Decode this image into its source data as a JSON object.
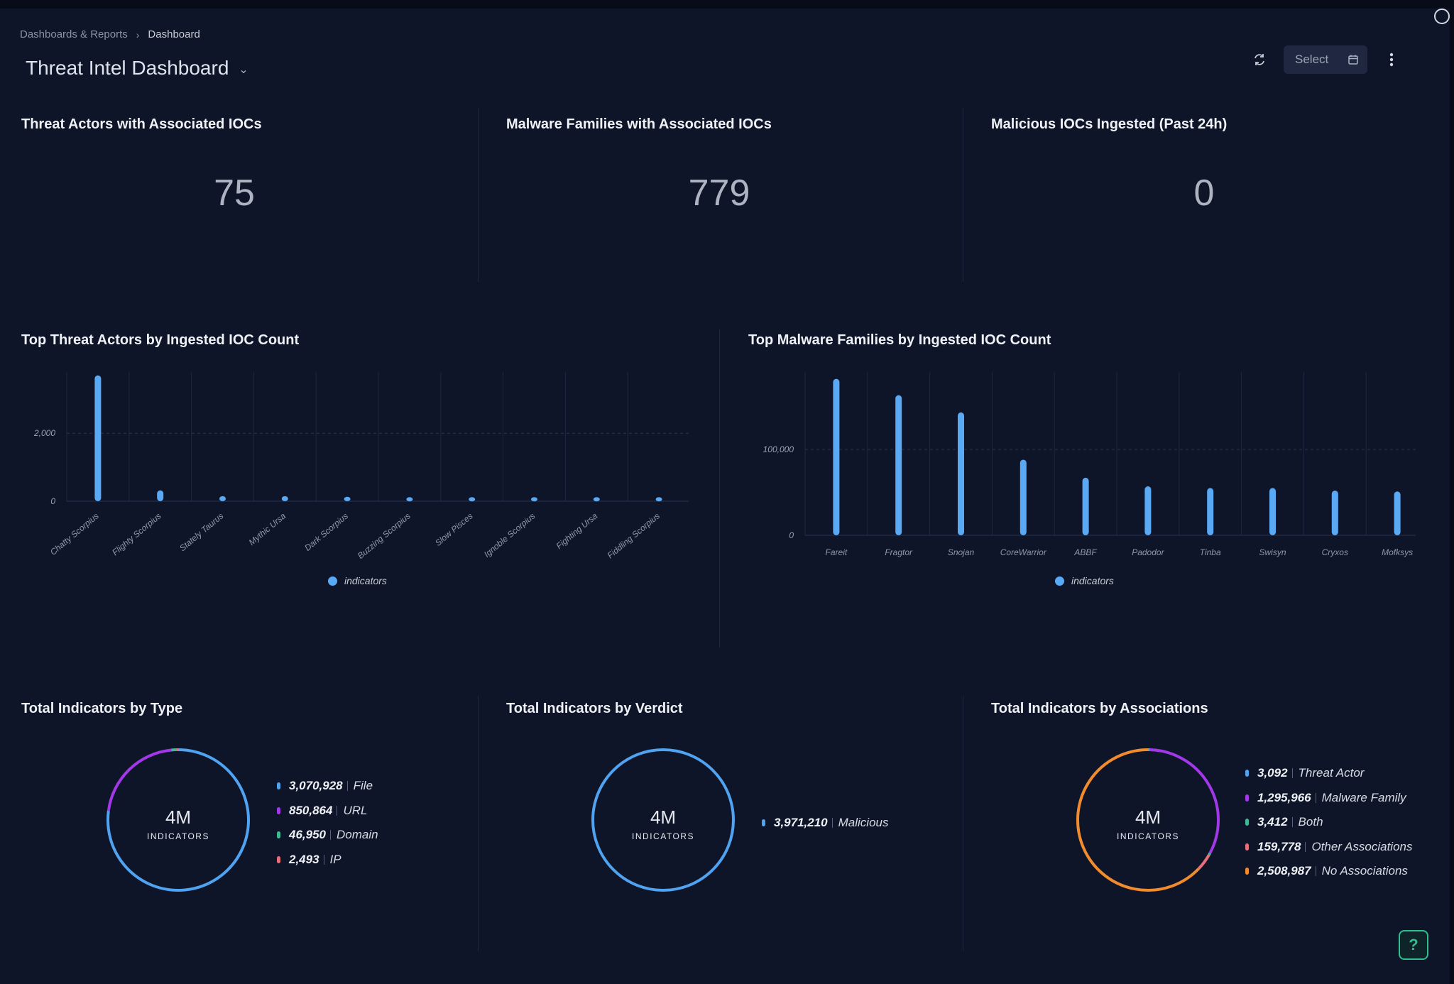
{
  "breadcrumb": {
    "parent": "Dashboards & Reports",
    "current": "Dashboard"
  },
  "page": {
    "title": "Threat Intel Dashboard"
  },
  "toolbar": {
    "select_label": "Select",
    "refresh_icon": "refresh-icon",
    "calendar_icon": "calendar-icon",
    "more_icon": "more-vertical-icon"
  },
  "kpis": [
    {
      "title": "Threat Actors with Associated IOCs",
      "value": "75"
    },
    {
      "title": "Malware Families with Associated IOCs",
      "value": "779"
    },
    {
      "title": "Malicious IOCs Ingested (Past 24h)",
      "value": "0"
    }
  ],
  "charts": {
    "actors": {
      "title": "Top Threat Actors by Ingested IOC Count",
      "legend": "indicators"
    },
    "malware": {
      "title": "Top Malware Families by Ingested IOC Count",
      "legend": "indicators"
    }
  },
  "chart_data": [
    {
      "type": "bar",
      "title": "Top Threat Actors by Ingested IOC Count",
      "categories": [
        "Chatty Scorpius",
        "Flighty Scorpius",
        "Stately Taurus",
        "Mythic Ursa",
        "Dark Scorpius",
        "Buzzing Scorpius",
        "Slow Pisces",
        "Ignoble Scorpius",
        "Fighting Ursa",
        "Fiddling Scorpius"
      ],
      "series": [
        {
          "name": "indicators",
          "values": [
            3700,
            320,
            150,
            150,
            130,
            120,
            120,
            120,
            120,
            120
          ]
        }
      ],
      "yticks": [
        0,
        2000
      ],
      "ytick_labels": [
        "0",
        "2,000"
      ],
      "ylim": [
        0,
        3800
      ],
      "legend": "bottom-center",
      "color": "#5aa9f5"
    },
    {
      "type": "bar",
      "title": "Top Malware Families by Ingested IOC Count",
      "categories": [
        "Fareit",
        "Fragtor",
        "Snojan",
        "CoreWarrior",
        "ABBF",
        "Padodor",
        "Tinba",
        "Swisyn",
        "Cryxos",
        "Mofksys"
      ],
      "series": [
        {
          "name": "indicators",
          "values": [
            182000,
            163000,
            143000,
            88000,
            67000,
            57000,
            55000,
            55000,
            52000,
            51000
          ]
        }
      ],
      "yticks": [
        0,
        100000
      ],
      "ytick_labels": [
        "0",
        "100,000"
      ],
      "ylim": [
        0,
        190000
      ],
      "legend": "bottom-center",
      "color": "#5aa9f5"
    },
    {
      "type": "pie",
      "title": "Total Indicators by Type",
      "center_value": "4M",
      "center_label": "INDICATORS",
      "slices": [
        {
          "label": "File",
          "value": 3070928,
          "display": "3,070,928",
          "color": "#4fa3f0"
        },
        {
          "label": "URL",
          "value": 850864,
          "display": "850,864",
          "color": "#a238e8"
        },
        {
          "label": "Domain",
          "value": 46950,
          "display": "46,950",
          "color": "#3fb894"
        },
        {
          "label": "IP",
          "value": 2493,
          "display": "2,493",
          "color": "#e86f7a"
        }
      ]
    },
    {
      "type": "pie",
      "title": "Total Indicators by Verdict",
      "center_value": "4M",
      "center_label": "INDICATORS",
      "slices": [
        {
          "label": "Malicious",
          "value": 3971210,
          "display": "3,971,210",
          "color": "#4fa3f0"
        }
      ]
    },
    {
      "type": "pie",
      "title": "Total Indicators by Associations",
      "center_value": "4M",
      "center_label": "INDICATORS",
      "slices": [
        {
          "label": "Threat Actor",
          "value": 3092,
          "display": "3,092",
          "color": "#4fa3f0"
        },
        {
          "label": "Malware Family",
          "value": 1295966,
          "display": "1,295,966",
          "color": "#a238e8"
        },
        {
          "label": "Both",
          "value": 3412,
          "display": "3,412",
          "color": "#3fb894"
        },
        {
          "label": "Other Associations",
          "value": 159778,
          "display": "159,778",
          "color": "#e86f7a"
        },
        {
          "label": "No Associations",
          "value": 2508987,
          "display": "2,508,987",
          "color": "#f28b2c"
        }
      ]
    }
  ],
  "help": {
    "label": "?"
  }
}
